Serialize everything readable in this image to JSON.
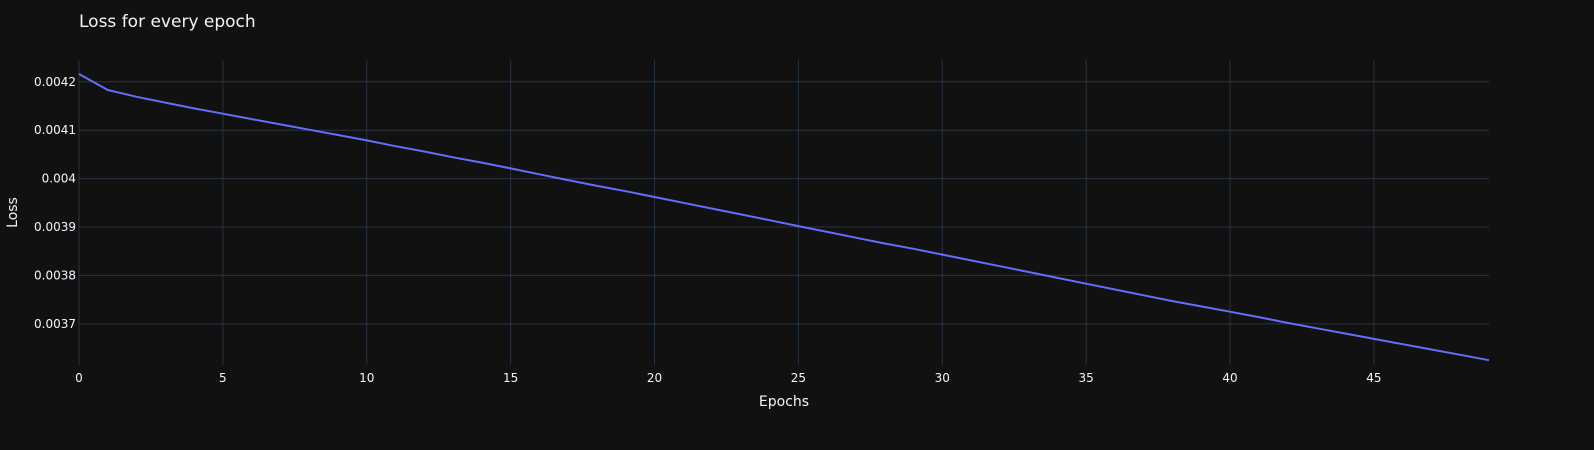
{
  "chart_data": {
    "type": "line",
    "title": "Loss for every epoch",
    "xlabel": "Epochs",
    "ylabel": "Loss",
    "xlim": [
      0,
      49
    ],
    "ylim": [
      0.003615,
      0.004245
    ],
    "grid": true,
    "legend": "none",
    "x_ticks": [
      0,
      5,
      10,
      15,
      20,
      25,
      30,
      35,
      40,
      45
    ],
    "x_tick_labels": [
      "0",
      "5",
      "10",
      "15",
      "20",
      "25",
      "30",
      "35",
      "40",
      "45"
    ],
    "y_ticks": [
      0.0037,
      0.0038,
      0.0039,
      0.004,
      0.0041,
      0.0042
    ],
    "y_tick_labels": [
      "0.0037",
      "0.0038",
      "0.0039",
      "0.004",
      "0.0041",
      "0.0042"
    ],
    "series": [
      {
        "color": "#636efa",
        "x": [
          0,
          1,
          2,
          3,
          4,
          5,
          6,
          7,
          8,
          9,
          10,
          11,
          12,
          13,
          14,
          15,
          16,
          17,
          18,
          19,
          20,
          21,
          22,
          23,
          24,
          25,
          26,
          27,
          28,
          29,
          30,
          31,
          32,
          33,
          34,
          35,
          36,
          37,
          38,
          39,
          40,
          41,
          42,
          43,
          44,
          45,
          46,
          47,
          48,
          49
        ],
        "y": [
          0.004216,
          0.004183,
          0.004169,
          0.004157,
          0.004145,
          0.004134,
          0.004123,
          0.004112,
          0.004101,
          0.00409,
          0.004079,
          0.004067,
          0.004056,
          0.004044,
          0.004033,
          0.004021,
          0.004009,
          0.003997,
          0.003985,
          0.003974,
          0.003962,
          0.00395,
          0.003938,
          0.003926,
          0.003914,
          0.003902,
          0.00389,
          0.003878,
          0.003866,
          0.003855,
          0.003843,
          0.003831,
          0.003819,
          0.003807,
          0.003795,
          0.003783,
          0.003771,
          0.003759,
          0.003747,
          0.003736,
          0.003725,
          0.003714,
          0.003702,
          0.003691,
          0.00368,
          0.003669,
          0.003658,
          0.003647,
          0.003636,
          0.003625
        ]
      }
    ]
  },
  "colors": {
    "background": "#111111",
    "grid": "#283442",
    "text": "#f2f5fa",
    "line": "#636efa"
  }
}
